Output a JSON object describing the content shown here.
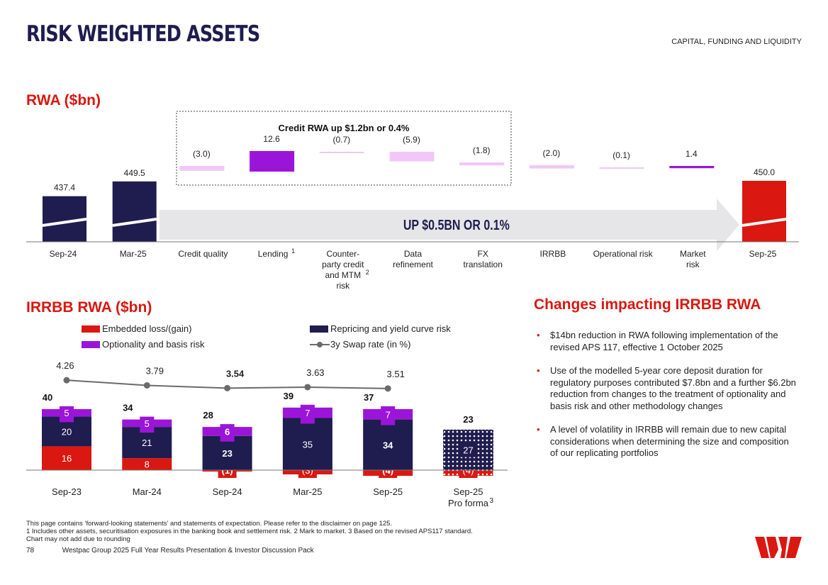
{
  "header": {
    "title": "RISK WEIGHTED ASSETS",
    "section": "CAPITAL, FUNDING AND LIQUIDITY"
  },
  "chart_data": [
    {
      "type": "bar",
      "subtype": "waterfall",
      "title": "RWA ($bn)",
      "categories": [
        "Sep-24",
        "Mar-25",
        "Credit quality",
        "Lending",
        "Counter-party credit and MTM risk",
        "Data refinement",
        "FX translation",
        "IRRBB",
        "Operational risk",
        "Market risk",
        "Sep-25"
      ],
      "category_labels": [
        [
          "Sep-24"
        ],
        [
          "Mar-25"
        ],
        [
          "Credit quality"
        ],
        [
          "Lending"
        ],
        [
          "Counter-",
          "party credit",
          "and MTM",
          "risk"
        ],
        [
          "Data",
          "refinement"
        ],
        [
          "FX",
          "translation"
        ],
        [
          "IRRBB"
        ],
        [
          "Operational risk"
        ],
        [
          "Market",
          "risk"
        ],
        [
          "Sep-25"
        ]
      ],
      "category_superscripts": [
        "",
        "",
        "",
        "1",
        "2",
        "",
        "",
        "",
        "",
        "",
        ""
      ],
      "bars": [
        {
          "kind": "total",
          "value": 437.4,
          "label": "437.4",
          "color": "#1f1c4f"
        },
        {
          "kind": "total",
          "value": 449.5,
          "label": "449.5",
          "color": "#1f1c4f"
        },
        {
          "kind": "delta",
          "value": -3.0,
          "label": "(3.0)",
          "color": "#f0c8f5"
        },
        {
          "kind": "delta",
          "value": 12.6,
          "label": "12.6",
          "color": "#9b15d9"
        },
        {
          "kind": "delta",
          "value": -0.7,
          "label": "(0.7)",
          "color": "#f0c8f5"
        },
        {
          "kind": "delta",
          "value": -5.9,
          "label": "(5.9)",
          "color": "#f0c8f5"
        },
        {
          "kind": "delta",
          "value": -1.8,
          "label": "(1.8)",
          "color": "#f0c8f5"
        },
        {
          "kind": "delta",
          "value": -2.0,
          "label": "(2.0)",
          "color": "#f0c8f5"
        },
        {
          "kind": "delta",
          "value": -0.1,
          "label": "(0.1)",
          "color": "#f0c8f5"
        },
        {
          "kind": "delta",
          "value": 1.4,
          "label": "1.4",
          "color": "#9b15d9"
        },
        {
          "kind": "total",
          "value": 450.0,
          "label": "450.0",
          "color": "#da1710"
        }
      ],
      "credit_box_label": "Credit RWA up $1.2bn or 0.4%",
      "arrow_label": "UP $0.5BN OR 0.1%"
    },
    {
      "type": "bar",
      "subtype": "stacked",
      "title": "IRRBB RWA ($bn)",
      "categories": [
        "Sep-23",
        "Mar-24",
        "Sep-24",
        "Mar-25",
        "Sep-25",
        "Sep-25 Pro forma"
      ],
      "category_labels": [
        [
          "Sep-23"
        ],
        [
          "Mar-24"
        ],
        [
          "Sep-24"
        ],
        [
          "Mar-25"
        ],
        [
          "Sep-25"
        ],
        [
          "Sep-25",
          "Pro forma"
        ]
      ],
      "category_superscripts": [
        "",
        "",
        "",
        "",
        "",
        "3"
      ],
      "series": [
        {
          "name": "Embedded loss/(gain)",
          "color": "#da1710",
          "values": [
            16,
            8,
            -1,
            -3,
            -4,
            -4
          ],
          "labels": [
            "16",
            "8",
            "(1)",
            "(3)",
            "(4)",
            "(4)"
          ]
        },
        {
          "name": "Repricing and yield curve risk",
          "color": "#1f1c4f",
          "values": [
            20,
            21,
            23,
            35,
            34,
            27
          ],
          "labels": [
            "20",
            "21",
            "23",
            "35",
            "34",
            "27"
          ]
        },
        {
          "name": "Optionality and basis risk",
          "color": "#9b15d9",
          "values": [
            5,
            5,
            6,
            7,
            7,
            0
          ],
          "labels": [
            "5",
            "5",
            "6",
            "7",
            "7",
            ""
          ]
        }
      ],
      "totals": [
        "40",
        "34",
        "28",
        "39",
        "37",
        "23"
      ],
      "line_series": {
        "name": "3y Swap rate (in %)",
        "color": "#6b6b6b",
        "values": [
          4.26,
          3.79,
          3.54,
          3.63,
          3.51
        ],
        "labels": [
          "4.26",
          "3.79",
          "3.54",
          "3.63",
          "3.51"
        ]
      },
      "legend_position": "top"
    }
  ],
  "changes": {
    "heading": "Changes impacting IRRBB RWA",
    "bullets": [
      "$14bn reduction in RWA following implementation of the revised APS 117, effective 1 October 2025",
      "Use of the modelled 5-year core deposit duration for regulatory purposes contributed $7.8bn and a further $6.2bn reduction from changes to the treatment of optionality and basis risk and other methodology changes",
      "A level of volatility in IRRBB will remain due to new capital considerations when determining the size and composition of our replicating portfolios"
    ]
  },
  "footer": {
    "notes": [
      "This page contains ‘forward-looking statements’ and statements of expectation. Please refer to the disclaimer on page 125.",
      "1 Includes other assets, securitisation exposures in the banking book and settlement risk. 2 Mark to market. 3 Based on the revised APS117 standard.",
      "Chart may not add due to rounding"
    ],
    "page_number": "78",
    "document": "Westpac Group 2025 Full Year Results Presentation & Investor Discussion Pack",
    "logo_text": "W"
  }
}
